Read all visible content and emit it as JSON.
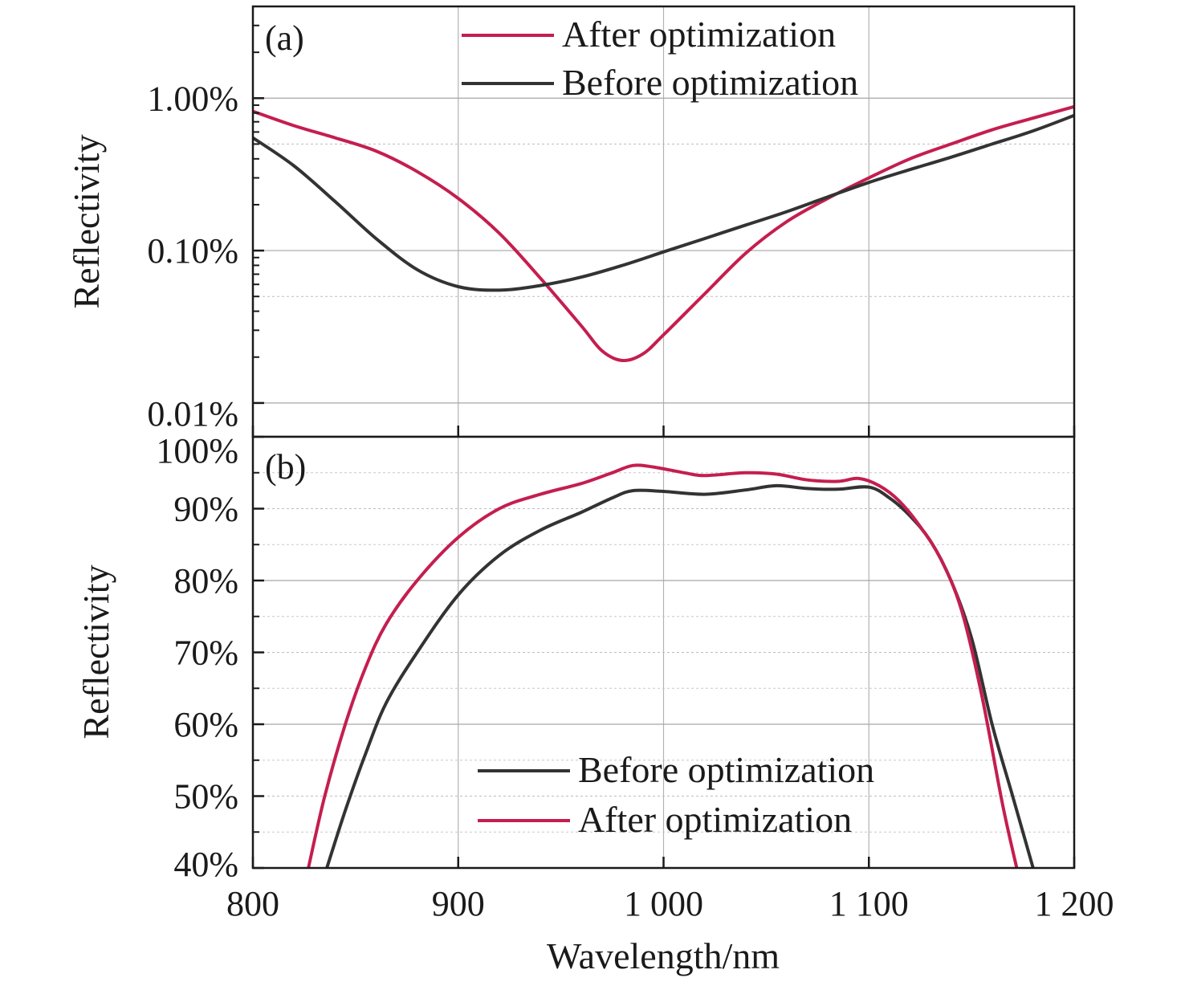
{
  "chart_data": [
    {
      "type": "line",
      "panel_label": "(a)",
      "xlabel": "",
      "ylabel": "Reflectivity",
      "y_scale": "log",
      "xlim": [
        800,
        1200
      ],
      "ylim_percent": [
        0.006,
        4.0
      ],
      "y_ticks": [
        {
          "value": 0.01,
          "label": "0.01%"
        },
        {
          "value": 0.1,
          "label": "0.10%"
        },
        {
          "value": 1.0,
          "label": "1.00%"
        }
      ],
      "grid": true,
      "legend_placement": "top-center",
      "series": [
        {
          "name": "After optimization",
          "color": "#c41e4f",
          "x": [
            800,
            820,
            840,
            860,
            880,
            900,
            920,
            940,
            960,
            970,
            980,
            990,
            1000,
            1020,
            1040,
            1060,
            1080,
            1100,
            1120,
            1140,
            1160,
            1180,
            1200
          ],
          "y": [
            0.82,
            0.66,
            0.55,
            0.45,
            0.33,
            0.22,
            0.13,
            0.066,
            0.032,
            0.022,
            0.019,
            0.021,
            0.028,
            0.052,
            0.096,
            0.155,
            0.22,
            0.3,
            0.4,
            0.5,
            0.62,
            0.74,
            0.88
          ]
        },
        {
          "name": "Before optimization",
          "color": "#333333",
          "x": [
            800,
            820,
            840,
            860,
            880,
            900,
            920,
            940,
            960,
            980,
            1000,
            1020,
            1040,
            1060,
            1080,
            1100,
            1120,
            1140,
            1160,
            1180,
            1200
          ],
          "y": [
            0.55,
            0.36,
            0.21,
            0.12,
            0.075,
            0.058,
            0.055,
            0.059,
            0.067,
            0.08,
            0.098,
            0.12,
            0.147,
            0.18,
            0.225,
            0.28,
            0.34,
            0.41,
            0.5,
            0.61,
            0.77
          ]
        }
      ]
    },
    {
      "type": "line",
      "panel_label": "(b)",
      "xlabel": "Wavelength/nm",
      "ylabel": "Reflectivity",
      "y_scale": "linear",
      "xlim": [
        800,
        1200
      ],
      "ylim_percent": [
        40,
        100
      ],
      "x_ticks": [
        {
          "value": 800,
          "label": "800"
        },
        {
          "value": 900,
          "label": "900"
        },
        {
          "value": 1000,
          "label": "1 000"
        },
        {
          "value": 1100,
          "label": "1 100"
        },
        {
          "value": 1200,
          "label": "1 200"
        }
      ],
      "y_ticks": [
        {
          "value": 40,
          "label": "40%"
        },
        {
          "value": 50,
          "label": "50%"
        },
        {
          "value": 60,
          "label": "60%"
        },
        {
          "value": 70,
          "label": "70%"
        },
        {
          "value": 80,
          "label": "80%"
        },
        {
          "value": 90,
          "label": "90%"
        },
        {
          "value": 100,
          "label": "100%"
        }
      ],
      "grid": true,
      "legend_placement": "bottom-center",
      "series": [
        {
          "name": "Before optimization",
          "color": "#333333",
          "x": [
            836,
            845,
            855,
            865,
            880,
            900,
            920,
            940,
            960,
            975,
            985,
            1000,
            1020,
            1040,
            1055,
            1070,
            1085,
            1100,
            1110,
            1120,
            1130,
            1140,
            1150,
            1160,
            1170,
            1180
          ],
          "y": [
            40,
            48,
            56,
            63,
            70,
            78,
            83.5,
            87,
            89.5,
            91.5,
            92.5,
            92.4,
            92,
            92.6,
            93.2,
            92.8,
            92.7,
            93,
            91.5,
            89,
            85.5,
            80,
            72,
            60,
            50,
            40
          ]
        },
        {
          "name": "After optimization",
          "color": "#c41e4f",
          "x": [
            827,
            835,
            845,
            855,
            865,
            880,
            900,
            920,
            940,
            960,
            975,
            985,
            995,
            1010,
            1020,
            1040,
            1055,
            1070,
            1085,
            1095,
            1105,
            1115,
            1125,
            1135,
            1145,
            1155,
            1165,
            1172
          ],
          "y": [
            40,
            50,
            60,
            68,
            74,
            80,
            86,
            90,
            92,
            93.5,
            95,
            96,
            95.8,
            95,
            94.6,
            95,
            94.8,
            94,
            93.8,
            94.2,
            93.2,
            91,
            87.5,
            83,
            76,
            64,
            49,
            40
          ]
        }
      ]
    }
  ]
}
